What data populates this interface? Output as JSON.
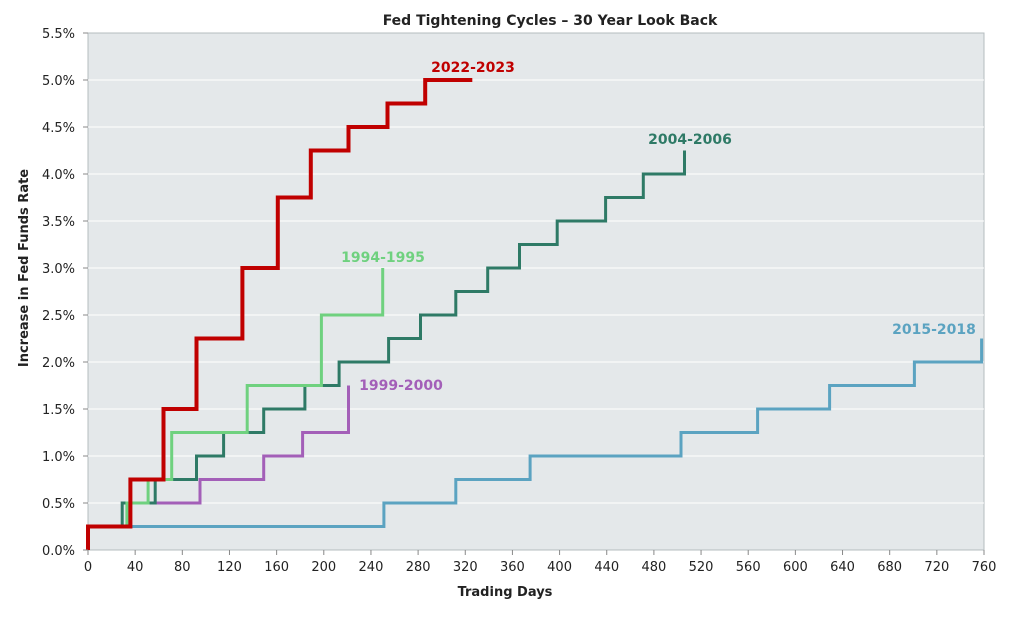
{
  "chart_data": {
    "type": "line",
    "title": "Fed Tightening Cycles – 30 Year Look Back",
    "xlabel": "Trading Days",
    "ylabel": "Increase in Fed Funds Rate",
    "xlim": [
      0,
      760
    ],
    "ylim": [
      0,
      5.5
    ],
    "x_ticks": [
      0,
      40,
      80,
      120,
      160,
      200,
      240,
      280,
      320,
      360,
      400,
      440,
      480,
      520,
      560,
      600,
      640,
      680,
      720,
      760
    ],
    "y_ticks": [
      0,
      0.5,
      1.0,
      1.5,
      2.0,
      2.5,
      3.0,
      3.5,
      4.0,
      4.5,
      5.0,
      5.5
    ],
    "x_tick_labels": [
      "0",
      "40",
      "80",
      "120",
      "160",
      "200",
      "240",
      "280",
      "320",
      "360",
      "400",
      "440",
      "480",
      "520",
      "560",
      "600",
      "640",
      "680",
      "720",
      "760"
    ],
    "y_tick_labels": [
      "0.0%",
      "0.5%",
      "1.0%",
      "1.5%",
      "2.0%",
      "2.5%",
      "3.0%",
      "3.5%",
      "4.0%",
      "4.5%",
      "5.0%",
      "5.5%"
    ],
    "grid": true,
    "series": [
      {
        "name": "2015-2018",
        "color": "#5ba3c1",
        "step_x": [
          0,
          251,
          312,
          375,
          503,
          568,
          629,
          701,
          758
        ],
        "step_y": [
          0.25,
          0.5,
          0.75,
          1.0,
          1.25,
          1.5,
          1.75,
          2.0,
          2.25
        ],
        "end_x": 758
      },
      {
        "name": "1999-2000",
        "color": "#a35fb8",
        "step_x": [
          0,
          35,
          54,
          95,
          149,
          182,
          221
        ],
        "step_y": [
          0.25,
          0.5,
          0.5,
          0.75,
          1.0,
          1.25,
          1.75
        ],
        "end_x": 221
      },
      {
        "name": "2004-2006",
        "color": "#2e7a66",
        "step_x": [
          0,
          29,
          57,
          92,
          115,
          149,
          184,
          213,
          255,
          282,
          312,
          339,
          366,
          398,
          439,
          471,
          506
        ],
        "step_y": [
          0.25,
          0.5,
          0.75,
          1.0,
          1.25,
          1.5,
          1.75,
          2.0,
          2.25,
          2.5,
          2.75,
          3.0,
          3.25,
          3.5,
          3.75,
          4.0,
          4.25
        ],
        "end_x": 506
      },
      {
        "name": "1994-1995",
        "color": "#6fd17f",
        "step_x": [
          0,
          33,
          51,
          71,
          135,
          198,
          250
        ],
        "step_y": [
          0.25,
          0.5,
          0.75,
          1.25,
          1.75,
          2.5,
          3.0
        ],
        "end_x": 250
      },
      {
        "name": "2022-2023",
        "color": "#c00000",
        "step_x": [
          0,
          36,
          64,
          92,
          131,
          161,
          189,
          221,
          254,
          286
        ],
        "step_y": [
          0.25,
          0.75,
          1.5,
          2.25,
          3.0,
          3.75,
          4.25,
          4.5,
          4.75,
          5.0
        ],
        "end_x": 326
      }
    ],
    "annotations": [
      {
        "text": "2022-2023",
        "color": "#c00000"
      },
      {
        "text": "2004-2006",
        "color": "#2e7a66"
      },
      {
        "text": "1994-1995",
        "color": "#6fd17f"
      },
      {
        "text": "1999-2000",
        "color": "#a35fb8"
      },
      {
        "text": "2015-2018",
        "color": "#5ba3c1"
      }
    ]
  }
}
